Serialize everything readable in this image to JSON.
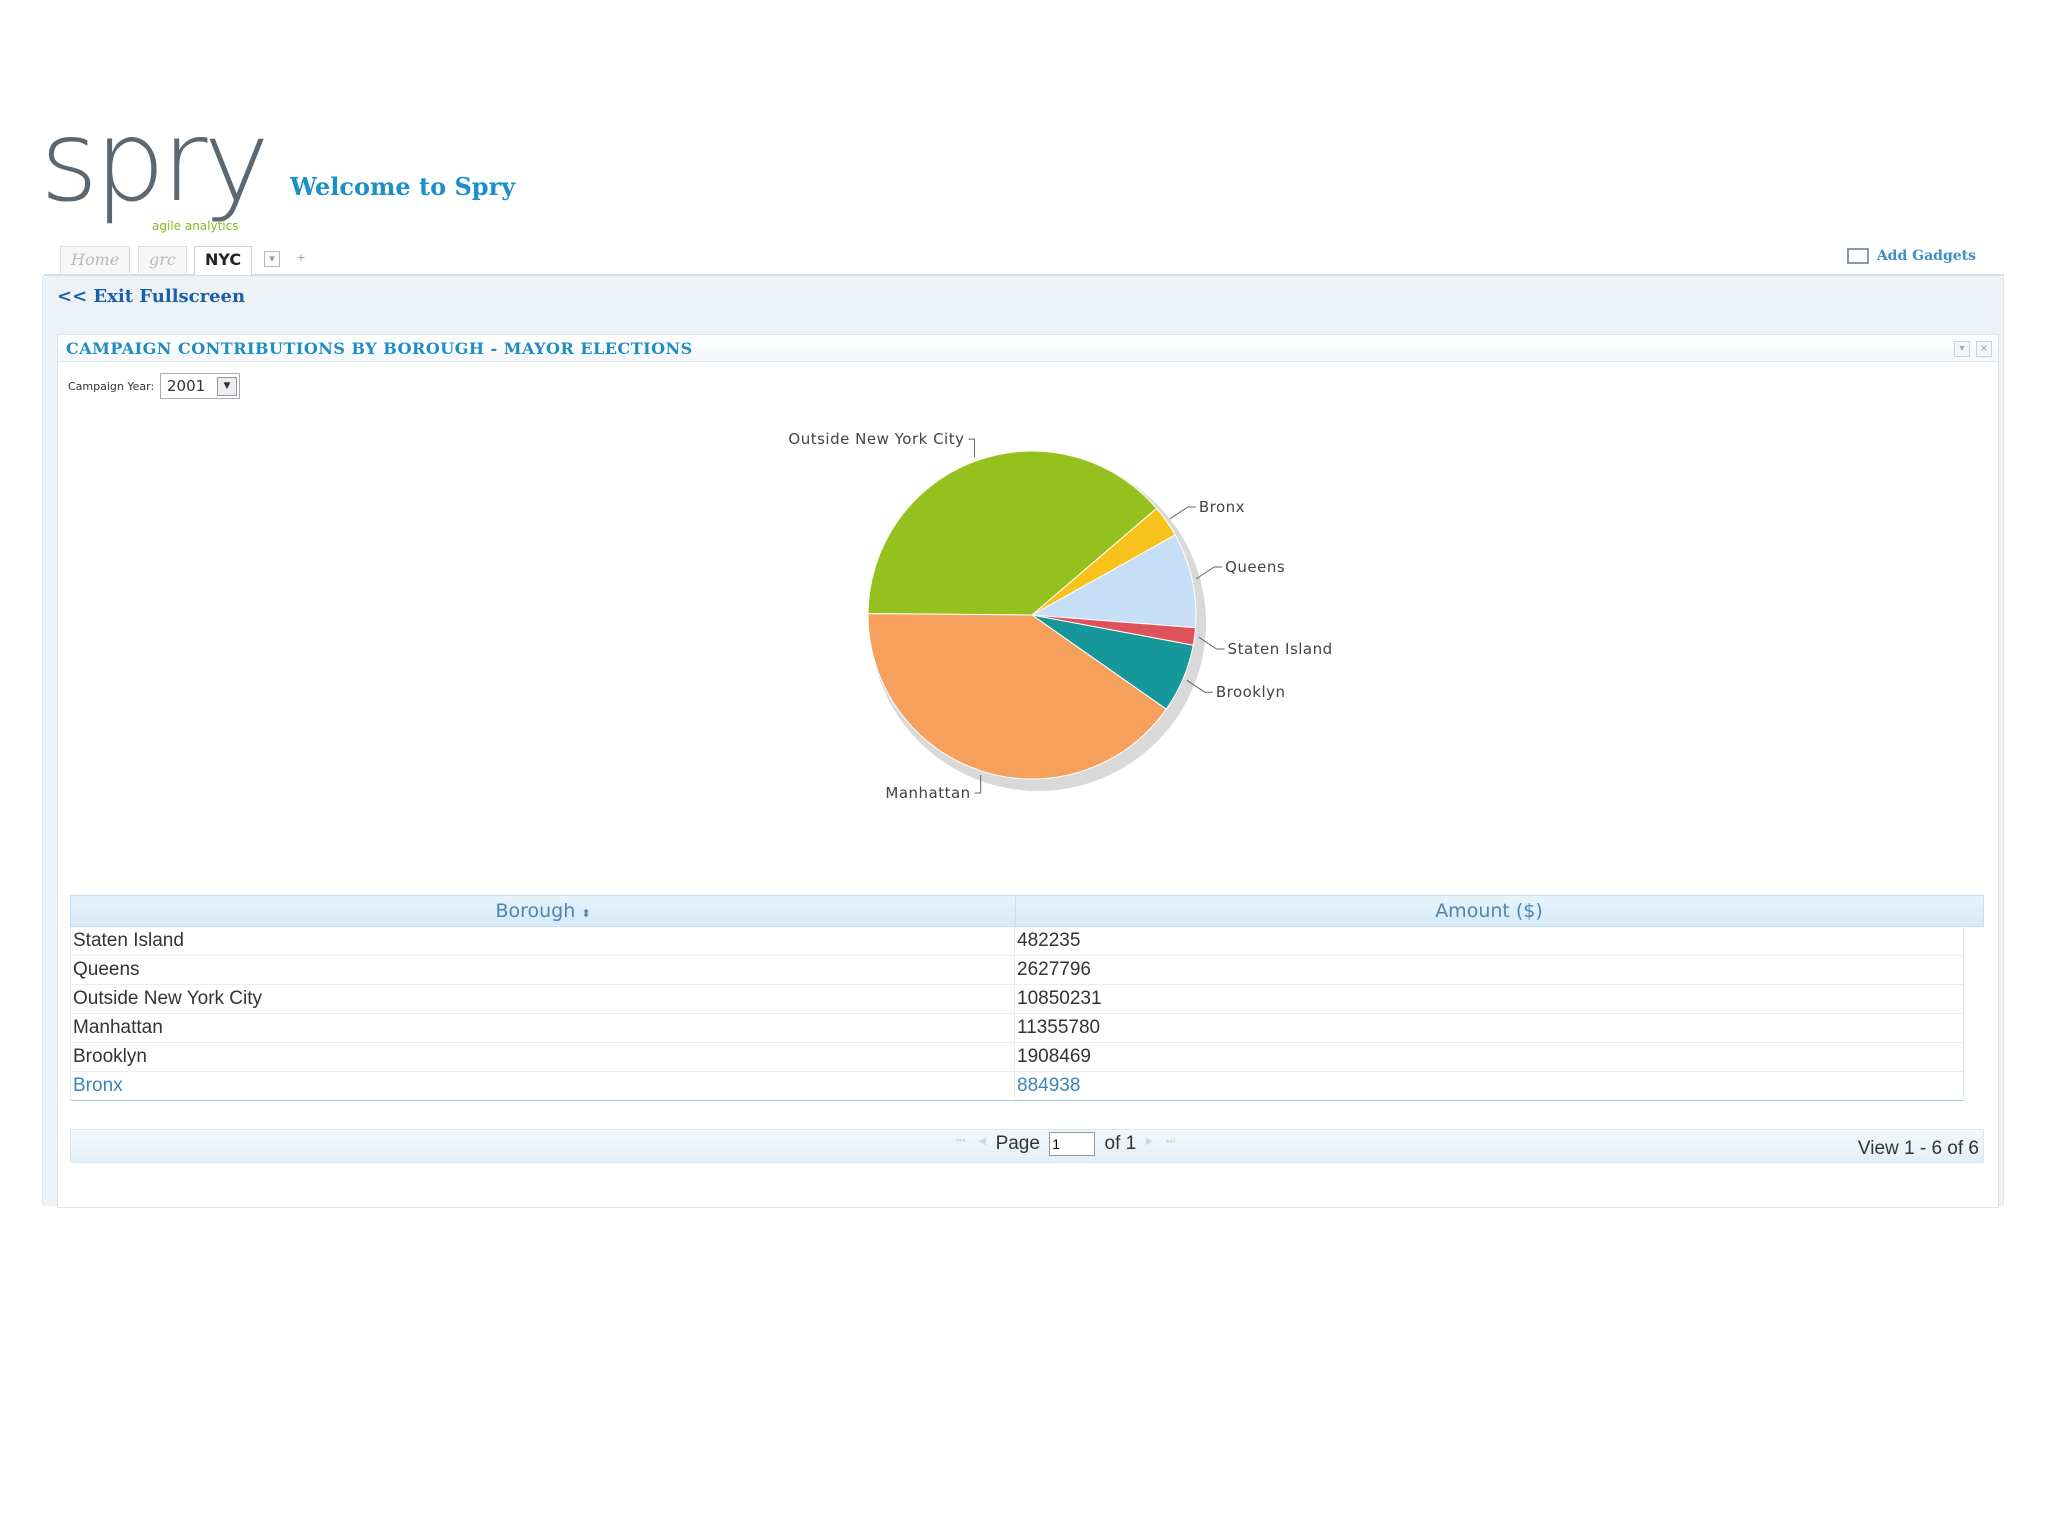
{
  "app": {
    "logo_text": "spry",
    "logo_tagline": "agile analytics",
    "welcome": "Welcome to Spry"
  },
  "tabs": [
    {
      "label": "Home"
    },
    {
      "label": "grc"
    },
    {
      "label": "NYC"
    }
  ],
  "toolbar": {
    "add_gadgets": "Add Gadgets",
    "exit_fullscreen": "<< Exit Fullscreen"
  },
  "panel": {
    "title": "CAMPAIGN CONTRIBUTIONS BY BOROUGH - MAYOR ELECTIONS",
    "year_label": "Campaign Year:",
    "year_value": "2001"
  },
  "chart_data": {
    "type": "pie",
    "categories": [
      "Outside New York City",
      "Bronx",
      "Queens",
      "Staten Island",
      "Brooklyn",
      "Manhattan"
    ],
    "values": [
      10850231,
      884938,
      2627796,
      482235,
      1908469,
      11355780
    ],
    "colors": [
      "#95c11f",
      "#f7c21c",
      "#c6dff7",
      "#e0525a",
      "#16979a",
      "#f5a05d"
    ]
  },
  "grid": {
    "columns": [
      "Borough",
      "Amount ($)"
    ],
    "rows": [
      [
        "Staten Island",
        "482235"
      ],
      [
        "Queens",
        "2627796"
      ],
      [
        "Outside New York City",
        "10850231"
      ],
      [
        "Manhattan",
        "11355780"
      ],
      [
        "Brooklyn",
        "1908469"
      ],
      [
        "Bronx",
        "884938"
      ]
    ],
    "page_label": "Page",
    "page_value": "1",
    "of_label": "of 1",
    "view_info": "View 1 - 6 of 6"
  }
}
